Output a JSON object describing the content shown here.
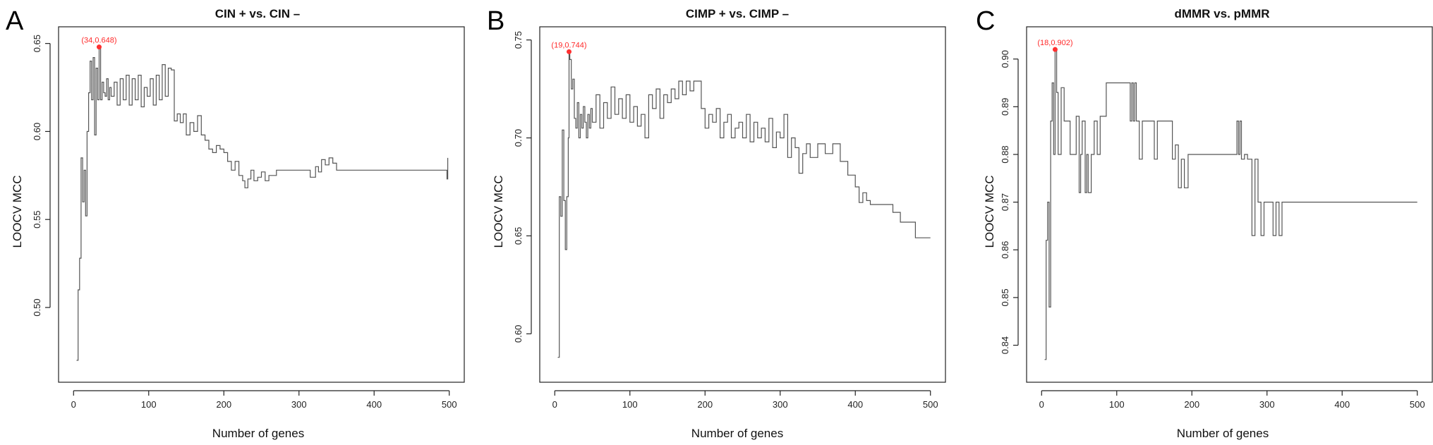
{
  "chart_data": [
    {
      "panel": "A",
      "type": "line",
      "title": "CIN + vs. CIN –",
      "xlabel": "Number of genes",
      "ylabel": "LOOCV MCC",
      "xlim": [
        0,
        500
      ],
      "ylim": [
        0.465,
        0.652
      ],
      "xticks": [
        0,
        100,
        200,
        300,
        400,
        500
      ],
      "yticks": [
        0.5,
        0.55,
        0.6,
        0.65
      ],
      "ytick_labels": [
        "0.50",
        "0.55",
        "0.60",
        "0.65"
      ],
      "peak": {
        "x": 34,
        "y": 0.648,
        "label": "(34,0.648)",
        "color": "#ff2a2a"
      },
      "series": [
        {
          "x": [
            4,
            6,
            8,
            10,
            12,
            14,
            16,
            18,
            20,
            22,
            24,
            26,
            28,
            30,
            32,
            34,
            36,
            38,
            40,
            42,
            44,
            46,
            48,
            50,
            54,
            58,
            62,
            66,
            70,
            74,
            78,
            82,
            86,
            90,
            94,
            98,
            102,
            106,
            110,
            114,
            118,
            122,
            126,
            130,
            134,
            138,
            142,
            146,
            150,
            155,
            160,
            165,
            170,
            175,
            180,
            185,
            190,
            195,
            200,
            205,
            210,
            215,
            220,
            225,
            228,
            232,
            236,
            240,
            245,
            250,
            255,
            260,
            270,
            280,
            290,
            300,
            310,
            315,
            318,
            322,
            326,
            330,
            335,
            340,
            345,
            350,
            355,
            360,
            400,
            450,
            496,
            497,
            498
          ],
          "y": [
            0.47,
            0.51,
            0.528,
            0.585,
            0.56,
            0.578,
            0.552,
            0.6,
            0.622,
            0.64,
            0.618,
            0.642,
            0.598,
            0.636,
            0.618,
            0.648,
            0.618,
            0.628,
            0.622,
            0.62,
            0.63,
            0.618,
            0.625,
            0.62,
            0.628,
            0.615,
            0.63,
            0.618,
            0.632,
            0.615,
            0.63,
            0.618,
            0.632,
            0.614,
            0.625,
            0.62,
            0.63,
            0.615,
            0.632,
            0.618,
            0.638,
            0.62,
            0.636,
            0.635,
            0.606,
            0.61,
            0.605,
            0.61,
            0.598,
            0.605,
            0.6,
            0.609,
            0.598,
            0.595,
            0.59,
            0.588,
            0.592,
            0.59,
            0.588,
            0.583,
            0.578,
            0.583,
            0.575,
            0.572,
            0.568,
            0.573,
            0.578,
            0.572,
            0.574,
            0.577,
            0.572,
            0.575,
            0.578,
            0.578,
            0.578,
            0.578,
            0.578,
            0.574,
            0.574,
            0.58,
            0.577,
            0.584,
            0.581,
            0.585,
            0.582,
            0.578,
            0.578,
            0.578,
            0.578,
            0.578,
            0.578,
            0.573,
            0.585
          ]
        }
      ]
    },
    {
      "panel": "B",
      "type": "line",
      "title": "CIMP + vs. CIMP –",
      "xlabel": "Number of genes",
      "ylabel": "LOOCV MCC",
      "xlim": [
        0,
        500
      ],
      "ylim": [
        0.582,
        0.75
      ],
      "xticks": [
        0,
        100,
        200,
        300,
        400,
        500
      ],
      "yticks": [
        0.6,
        0.65,
        0.7,
        0.75
      ],
      "ytick_labels": [
        "0.60",
        "0.65",
        "0.70",
        "0.75"
      ],
      "peak": {
        "x": 19,
        "y": 0.744,
        "label": "(19,0.744)",
        "color": "#ff2a2a"
      },
      "series": [
        {
          "x": [
            4,
            6,
            8,
            10,
            12,
            14,
            16,
            18,
            19,
            20,
            22,
            24,
            26,
            28,
            30,
            32,
            34,
            36,
            38,
            40,
            42,
            44,
            46,
            48,
            50,
            55,
            60,
            65,
            70,
            75,
            80,
            85,
            90,
            95,
            100,
            105,
            110,
            115,
            120,
            125,
            130,
            135,
            140,
            145,
            150,
            155,
            160,
            165,
            170,
            175,
            180,
            185,
            190,
            195,
            200,
            205,
            210,
            215,
            220,
            225,
            230,
            235,
            240,
            245,
            250,
            255,
            260,
            265,
            270,
            275,
            280,
            285,
            290,
            295,
            300,
            305,
            310,
            315,
            320,
            325,
            330,
            335,
            340,
            350,
            360,
            370,
            380,
            390,
            400,
            405,
            410,
            415,
            420,
            430,
            440,
            450,
            460,
            470,
            480,
            490,
            500
          ],
          "y": [
            0.588,
            0.67,
            0.66,
            0.704,
            0.668,
            0.643,
            0.67,
            0.7,
            0.744,
            0.74,
            0.725,
            0.73,
            0.71,
            0.705,
            0.718,
            0.7,
            0.712,
            0.705,
            0.716,
            0.708,
            0.7,
            0.712,
            0.705,
            0.715,
            0.708,
            0.722,
            0.705,
            0.718,
            0.71,
            0.726,
            0.712,
            0.72,
            0.71,
            0.722,
            0.708,
            0.716,
            0.706,
            0.712,
            0.7,
            0.722,
            0.715,
            0.725,
            0.71,
            0.722,
            0.718,
            0.725,
            0.72,
            0.729,
            0.722,
            0.729,
            0.724,
            0.729,
            0.729,
            0.715,
            0.705,
            0.712,
            0.708,
            0.715,
            0.7,
            0.708,
            0.712,
            0.7,
            0.705,
            0.708,
            0.7,
            0.712,
            0.698,
            0.708,
            0.7,
            0.705,
            0.698,
            0.71,
            0.695,
            0.703,
            0.7,
            0.712,
            0.69,
            0.7,
            0.695,
            0.682,
            0.692,
            0.697,
            0.69,
            0.697,
            0.692,
            0.697,
            0.688,
            0.681,
            0.675,
            0.667,
            0.672,
            0.668,
            0.666,
            0.666,
            0.666,
            0.662,
            0.657,
            0.657,
            0.649,
            0.649,
            0.649
          ]
        }
      ]
    },
    {
      "panel": "C",
      "type": "line",
      "title": "dMMR vs. pMMR",
      "xlabel": "Number of genes",
      "ylabel": "LOOCV MCC",
      "xlim": [
        0,
        500
      ],
      "ylim": [
        0.835,
        0.904
      ],
      "xticks": [
        0,
        100,
        200,
        300,
        400,
        500
      ],
      "yticks": [
        0.84,
        0.85,
        0.86,
        0.87,
        0.88,
        0.89,
        0.9
      ],
      "ytick_labels": [
        "0.84",
        "0.85",
        "0.86",
        "0.87",
        "0.88",
        "0.89",
        "0.90"
      ],
      "peak": {
        "x": 18,
        "y": 0.902,
        "label": "(18,0.902)",
        "color": "#ff2a2a"
      },
      "series": [
        {
          "x": [
            4,
            6,
            8,
            10,
            12,
            14,
            16,
            18,
            20,
            22,
            26,
            30,
            34,
            38,
            42,
            46,
            50,
            52,
            54,
            58,
            60,
            62,
            66,
            70,
            74,
            78,
            82,
            86,
            90,
            95,
            100,
            105,
            110,
            115,
            118,
            120,
            122,
            124,
            126,
            128,
            130,
            134,
            138,
            142,
            146,
            150,
            154,
            158,
            162,
            166,
            170,
            174,
            178,
            182,
            186,
            190,
            195,
            200,
            205,
            210,
            230,
            250,
            260,
            262,
            264,
            266,
            270,
            274,
            280,
            284,
            288,
            292,
            296,
            300,
            304,
            308,
            312,
            316,
            320,
            330,
            360,
            400,
            450,
            500
          ],
          "y": [
            0.837,
            0.862,
            0.87,
            0.848,
            0.887,
            0.895,
            0.88,
            0.902,
            0.893,
            0.88,
            0.894,
            0.887,
            0.887,
            0.88,
            0.88,
            0.888,
            0.872,
            0.88,
            0.887,
            0.872,
            0.88,
            0.872,
            0.88,
            0.887,
            0.88,
            0.888,
            0.888,
            0.895,
            0.895,
            0.895,
            0.895,
            0.895,
            0.895,
            0.895,
            0.887,
            0.895,
            0.887,
            0.895,
            0.887,
            0.887,
            0.879,
            0.887,
            0.887,
            0.887,
            0.887,
            0.879,
            0.887,
            0.887,
            0.887,
            0.887,
            0.887,
            0.879,
            0.882,
            0.873,
            0.879,
            0.873,
            0.88,
            0.88,
            0.88,
            0.88,
            0.88,
            0.88,
            0.887,
            0.88,
            0.887,
            0.879,
            0.88,
            0.879,
            0.863,
            0.879,
            0.87,
            0.863,
            0.87,
            0.87,
            0.87,
            0.863,
            0.87,
            0.863,
            0.87,
            0.87,
            0.87,
            0.87,
            0.87,
            0.87
          ]
        }
      ]
    }
  ]
}
